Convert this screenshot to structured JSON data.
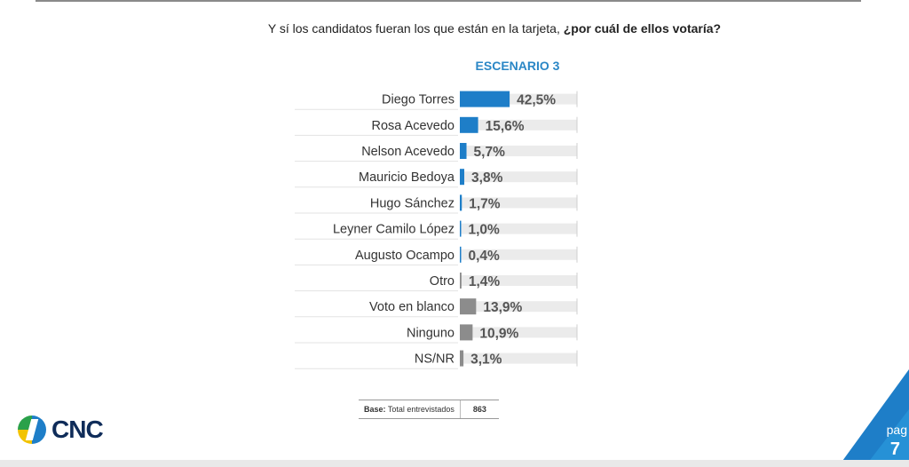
{
  "question": {
    "part_a": "Y sí los candidatos fueran los que están en la tarjeta,",
    "part_b": "¿por cuál de ellos votaría?"
  },
  "scenario_title": "ESCENARIO 3",
  "colors": {
    "candidate_bar": "#1e7ec8",
    "other_bar": "#8c8c8c",
    "track": "#ebebeb",
    "title_blue": "#2b87c6"
  },
  "chart_data": {
    "type": "bar",
    "orientation": "horizontal",
    "title": "ESCENARIO 3",
    "categories": [
      "Diego Torres",
      "Rosa Acevedo",
      "Nelson Acevedo",
      "Mauricio Bedoya",
      "Hugo Sánchez",
      "Leyner Camilo López",
      "Augusto Ocampo",
      "Otro",
      "Voto en blanco",
      "Ninguno",
      "NS/NR"
    ],
    "values": [
      42.5,
      15.6,
      5.7,
      3.8,
      1.7,
      1.0,
      0.4,
      1.4,
      13.9,
      10.9,
      3.1
    ],
    "labels": [
      "42,5%",
      "15,6%",
      "5,7%",
      "3,8%",
      "1,7%",
      "1,0%",
      "0,4%",
      "1,4%",
      "13,9%",
      "10,9%",
      "3,1%"
    ],
    "bar_color_groups": [
      "candidate",
      "candidate",
      "candidate",
      "candidate",
      "candidate",
      "candidate",
      "candidate",
      "other",
      "other",
      "other",
      "other"
    ],
    "xlim": [
      0,
      100
    ],
    "grid": false,
    "legend": "none"
  },
  "base": {
    "label_bold": "Base:",
    "label": " Total entrevistados",
    "value": "863"
  },
  "logo": {
    "text": "CNC",
    "icon": "cnc-logo-icon"
  },
  "page": {
    "label": "pag",
    "number": "7"
  }
}
